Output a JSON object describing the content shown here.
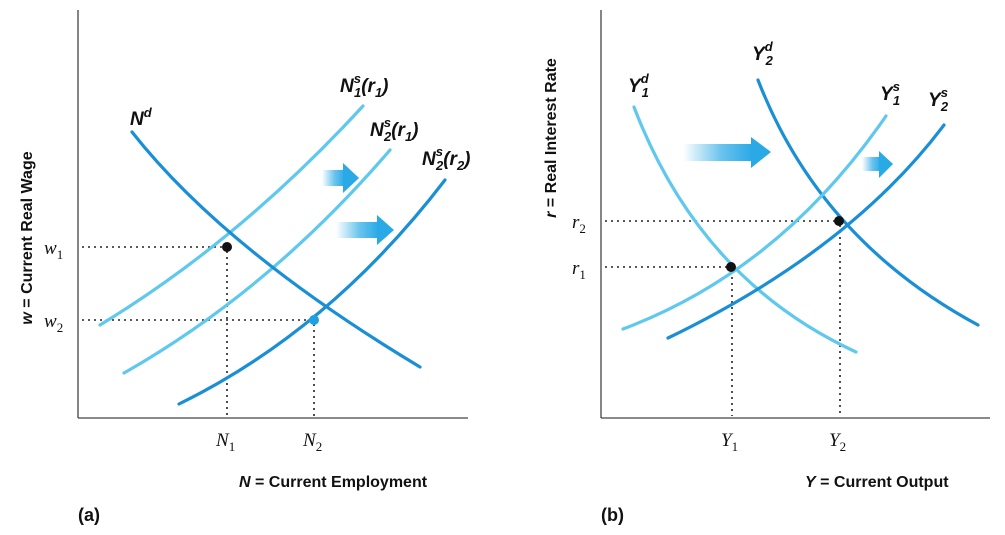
{
  "panel_a": {
    "tag": "(a)",
    "y_axis_label_var": "w",
    "y_axis_label_text": " = Current Real Wage",
    "x_axis_label_var": "N",
    "x_axis_label_text": " = Current Employment",
    "ticks": {
      "w1_base": "w",
      "w1_sub": "1",
      "w2_base": "w",
      "w2_sub": "2",
      "n1_base": "N",
      "n1_sub": "1",
      "n2_base": "N",
      "n2_sub": "2"
    },
    "curves": {
      "nd_base": "N",
      "nd_sup": "d",
      "ns1r1_base": "N",
      "ns1r1_sup": "s",
      "ns1r1_sub": "1",
      "ns1r1_arg": "(r",
      "ns1r1_arg_sub": "1",
      "ns1r1_close": ")",
      "ns2r1_base": "N",
      "ns2r1_sup": "s",
      "ns2r1_sub": "2",
      "ns2r1_arg": "(r",
      "ns2r1_arg_sub": "1",
      "ns2r1_close": ")",
      "ns2r2_base": "N",
      "ns2r2_sup": "s",
      "ns2r2_sub": "2",
      "ns2r2_arg": "(r",
      "ns2r2_arg_sub": "2",
      "ns2r2_close": ")"
    }
  },
  "panel_b": {
    "tag": "(b)",
    "y_axis_label_var": "r",
    "y_axis_label_text": " = Real Interest Rate",
    "x_axis_label_var": "Y",
    "x_axis_label_text": " = Current Output",
    "ticks": {
      "r1_base": "r",
      "r1_sub": "1",
      "r2_base": "r",
      "r2_sub": "2",
      "y1_base": "Y",
      "y1_sub": "1",
      "y2_base": "Y",
      "y2_sub": "2"
    },
    "curves": {
      "yd1_base": "Y",
      "yd1_sup": "d",
      "yd1_sub": "1",
      "yd2_base": "Y",
      "yd2_sup": "d",
      "yd2_sub": "2",
      "ys1_base": "Y",
      "ys1_sup": "s",
      "ys1_sub": "1",
      "ys2_base": "Y",
      "ys2_sup": "s",
      "ys2_sub": "2"
    }
  },
  "colors": {
    "light_curve": "#5fc8ee",
    "dark_curve": "#1a8fd6",
    "equilibrium_dot_a1": "#111111",
    "equilibrium_dot_a2": "#1fa0e0",
    "arrow": "#29a9e6"
  }
}
